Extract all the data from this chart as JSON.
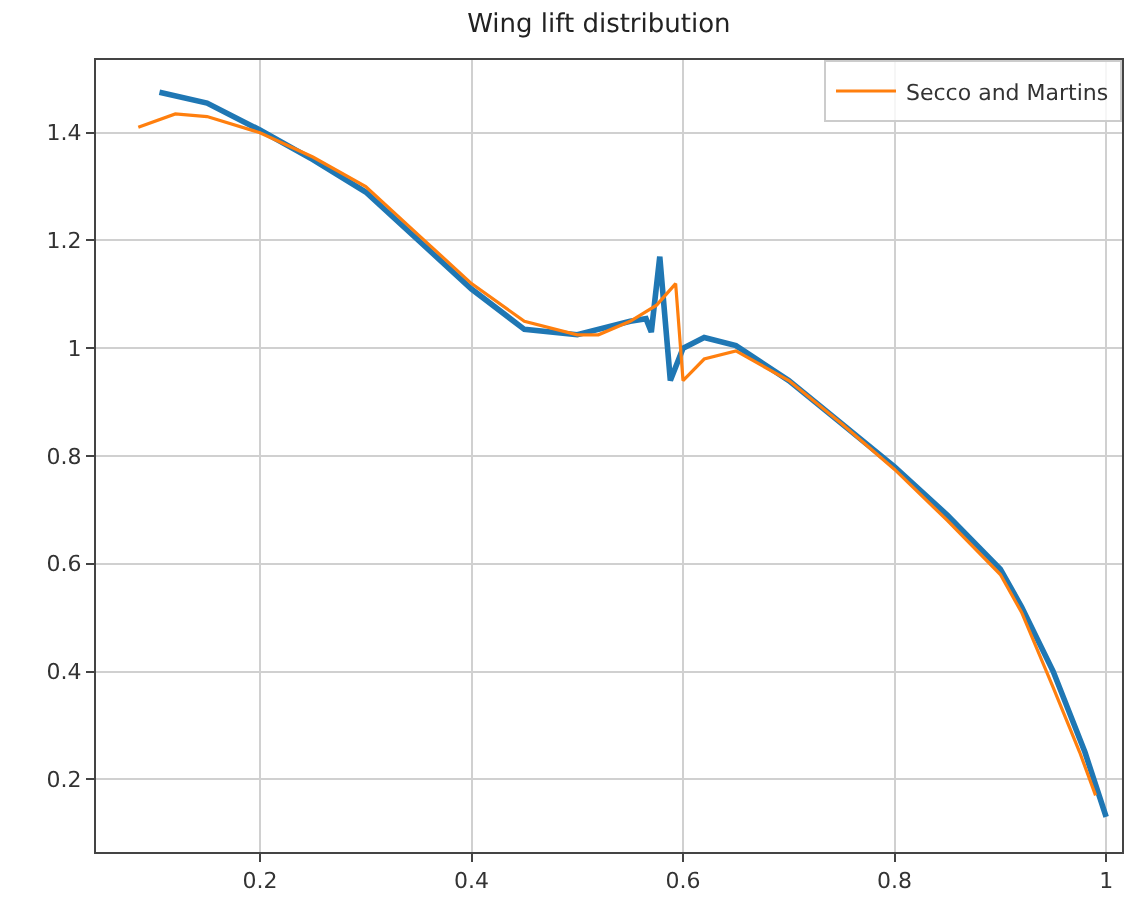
{
  "chart_data": {
    "type": "line",
    "title": "Wing lift distribution",
    "xlim": [
      0.045,
      1.015
    ],
    "ylim": [
      0.065,
      1.535
    ],
    "xticks": [
      0.2,
      0.4,
      0.6,
      0.8,
      1.0
    ],
    "yticks": [
      0.2,
      0.4,
      0.6,
      0.8,
      1.0,
      1.2,
      1.4
    ],
    "grid": true,
    "legend": "top right",
    "series": [
      {
        "color": "#1f77b4",
        "x": [
          0.105,
          0.15,
          0.2,
          0.25,
          0.3,
          0.35,
          0.4,
          0.45,
          0.5,
          0.55,
          0.565,
          0.57,
          0.578,
          0.588,
          0.6,
          0.62,
          0.65,
          0.7,
          0.75,
          0.8,
          0.85,
          0.9,
          0.92,
          0.95,
          0.98,
          1.0
        ],
        "values": [
          1.475,
          1.455,
          1.405,
          1.35,
          1.29,
          1.2,
          1.11,
          1.035,
          1.025,
          1.05,
          1.055,
          1.03,
          1.17,
          0.94,
          1.0,
          1.02,
          1.005,
          0.94,
          0.86,
          0.78,
          0.69,
          0.59,
          0.52,
          0.4,
          0.25,
          0.13
        ]
      },
      {
        "name": "Secco and Martins",
        "color": "#ff7f0e",
        "x": [
          0.085,
          0.12,
          0.15,
          0.2,
          0.25,
          0.3,
          0.35,
          0.4,
          0.45,
          0.5,
          0.52,
          0.55,
          0.575,
          0.593,
          0.6,
          0.62,
          0.65,
          0.7,
          0.75,
          0.8,
          0.85,
          0.9,
          0.92,
          0.95,
          0.975,
          0.99
        ],
        "values": [
          1.41,
          1.435,
          1.43,
          1.4,
          1.355,
          1.3,
          1.21,
          1.12,
          1.05,
          1.025,
          1.025,
          1.05,
          1.08,
          1.12,
          0.94,
          0.98,
          0.995,
          0.94,
          0.86,
          0.775,
          0.68,
          0.58,
          0.51,
          0.37,
          0.25,
          0.17
        ]
      }
    ]
  }
}
